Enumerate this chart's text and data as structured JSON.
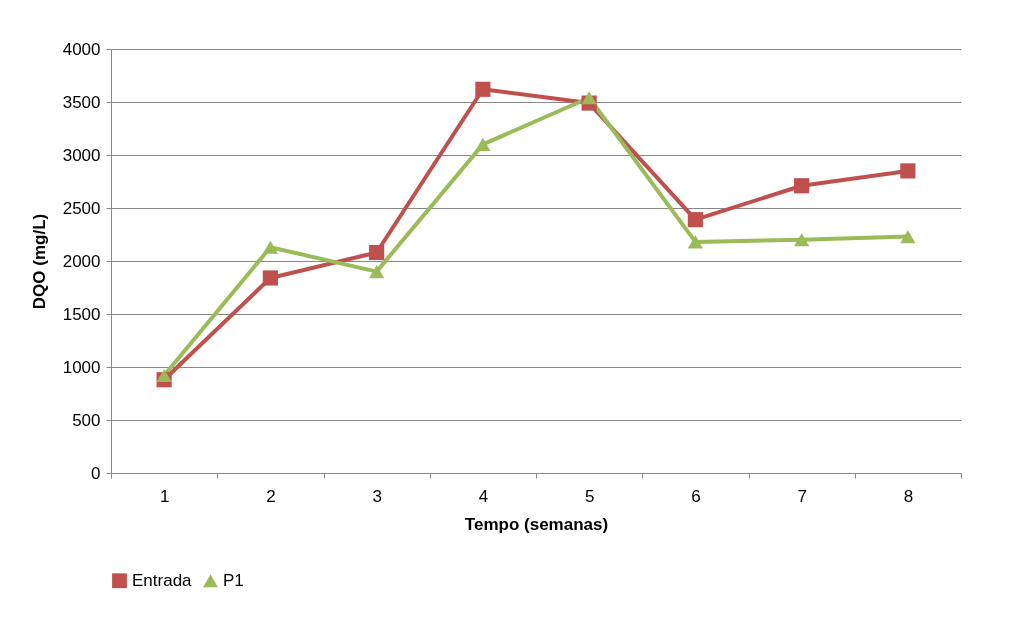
{
  "chart_data": {
    "type": "line",
    "xlabel": "Tempo (semanas)",
    "ylabel": "DQO (mg/L)",
    "categories": [
      "1",
      "2",
      "3",
      "4",
      "5",
      "6",
      "7",
      "8"
    ],
    "series": [
      {
        "name": "Entrada",
        "color": "#c0504d",
        "marker": "square",
        "values": [
          880,
          1840,
          2080,
          3620,
          3490,
          2390,
          2710,
          2850
        ]
      },
      {
        "name": "P1",
        "color": "#9bbb59",
        "marker": "triangle",
        "values": [
          920,
          2130,
          1900,
          3100,
          3540,
          2180,
          2200,
          2230
        ]
      }
    ],
    "ylim": [
      0,
      4000
    ],
    "yticks": [
      0,
      500,
      1000,
      1500,
      2000,
      2500,
      3000,
      3500,
      4000
    ],
    "grid": "y",
    "legend": "bottom"
  }
}
